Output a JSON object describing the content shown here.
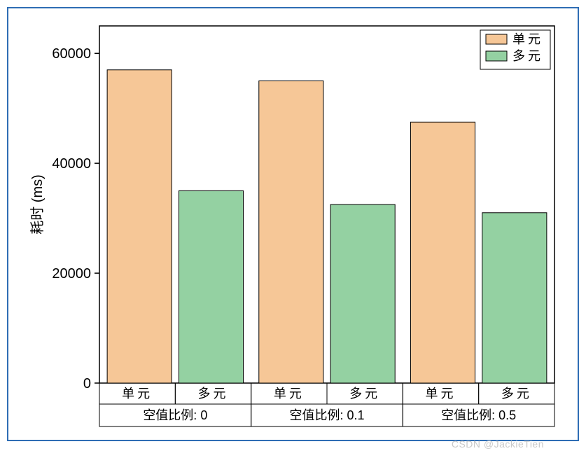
{
  "chart": {
    "type": "bar",
    "ylabel": "耗时 (ms)",
    "ylabel_fontsize": 20,
    "ylim": [
      0,
      65000
    ],
    "yticks": [
      0,
      20000,
      40000,
      60000
    ],
    "background_color": "#ffffff",
    "frame_border_color": "#2e6db4",
    "axis_color": "#000000",
    "tick_fontsize": 20,
    "legend": {
      "position": "top-right",
      "border_color": "#000000",
      "items": [
        {
          "label": "单元",
          "color": "#f6c797",
          "border": "#000000"
        },
        {
          "label": "多元",
          "color": "#94d1a2",
          "border": "#000000"
        }
      ]
    },
    "groups": [
      {
        "label": "空值比例: 0",
        "bars": [
          {
            "category": "单元",
            "value": 57000,
            "color": "#f6c797",
            "border": "#000000"
          },
          {
            "category": "多元",
            "value": 35000,
            "color": "#94d1a2",
            "border": "#000000"
          }
        ]
      },
      {
        "label": "空值比例: 0.1",
        "bars": [
          {
            "category": "单元",
            "value": 55000,
            "color": "#f6c797",
            "border": "#000000"
          },
          {
            "category": "多元",
            "value": 32500,
            "color": "#94d1a2",
            "border": "#000000"
          }
        ]
      },
      {
        "label": "空值比例: 0.5",
        "bars": [
          {
            "category": "单元",
            "value": 47500,
            "color": "#f6c797",
            "border": "#000000"
          },
          {
            "category": "多元",
            "value": 31000,
            "color": "#94d1a2",
            "border": "#000000"
          }
        ]
      }
    ],
    "bar_width_ratio": 0.9,
    "bar_border_width": 1,
    "category_label_fontsize": 18,
    "group_label_fontsize": 18
  },
  "watermark": "CSDN @JackieTien"
}
